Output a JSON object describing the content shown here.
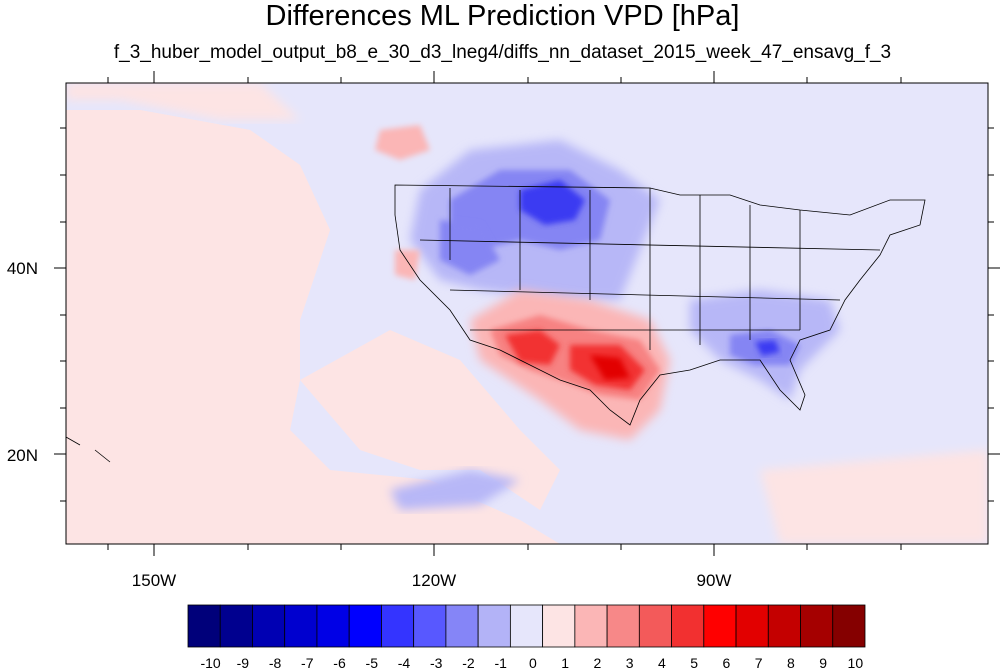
{
  "title": "Differences ML Prediction VPD [hPa]",
  "subtitle": "f_3_huber_model_output_b8_e_30_d3_lneg4/diffs_nn_dataset_2015_week_47_ensavg_f_3",
  "map": {
    "lon_labels": [
      "150W",
      "120W",
      "90W"
    ],
    "lat_labels": [
      "40N",
      "20N"
    ],
    "colors": {
      "ocean_pos": "#fde4e4",
      "land_neg": "#e6e6fb",
      "weak_neg": "#b7b7f7",
      "mid_neg": "#8585f3",
      "strong_neg": "#3a3af2",
      "weak_pos": "#fbb6b6",
      "mid_pos": "#f78282",
      "strong_pos": "#f23232",
      "max_pos": "#e20000",
      "outline": "#000000"
    }
  },
  "colorbar": {
    "labels": [
      "-10",
      "-9",
      "-8",
      "-7",
      "-6",
      "-5",
      "-4",
      "-3",
      "-2",
      "-1",
      "0",
      "1",
      "2",
      "3",
      "4",
      "5",
      "6",
      "7",
      "8",
      "9",
      "10"
    ],
    "colors": [
      "#00007a",
      "#00008f",
      "#0000b3",
      "#0000cf",
      "#0000e6",
      "#0000ff",
      "#3434ff",
      "#5858ff",
      "#8585f7",
      "#b3b3f7",
      "#e6e6fb",
      "#fde4e4",
      "#fbb6b6",
      "#f78888",
      "#f35a5a",
      "#f23030",
      "#ff0000",
      "#e20000",
      "#c40000",
      "#a50000",
      "#850000"
    ]
  }
}
